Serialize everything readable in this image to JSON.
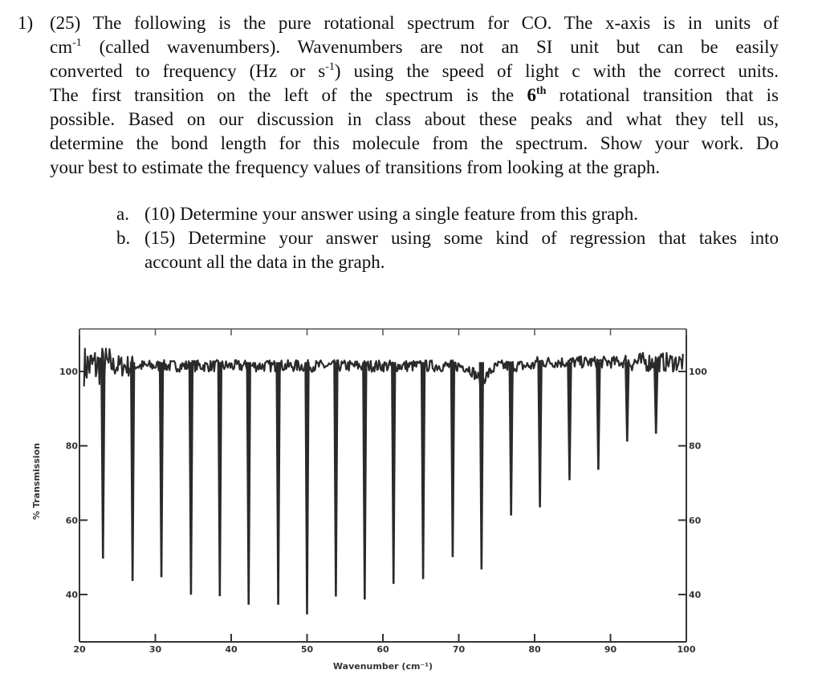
{
  "question": {
    "number": "1)",
    "lines": [
      [
        "(25) The following is the pure rotational spectrum for CO.  The x-axis is in units of"
      ],
      [
        "cm",
        "-1",
        " (called wavenumbers).  Wavenumbers are not an SI unit but can be easily"
      ],
      [
        "converted to frequency (Hz or s",
        "-1",
        ") using the speed of light c with the correct units."
      ],
      [
        "The first transition on the left of the spectrum is the ",
        "6",
        "th",
        " rotational transition that is"
      ],
      [
        "possible.  Based on our discussion in class about these peaks and what they tell us,"
      ],
      [
        "determine the bond length for this molecule from the spectrum.  Show your work. Do"
      ],
      [
        "your best to estimate the frequency values of transitions from looking at the graph."
      ]
    ],
    "parts": [
      {
        "label": "a.",
        "lines": [
          "(10) Determine your answer using a single feature from this graph."
        ]
      },
      {
        "label": "b.",
        "lines": [
          "(15) Determine your answer using some kind of regression that takes into",
          "account all the data in the graph."
        ]
      }
    ]
  },
  "chart_data": {
    "type": "line",
    "title": "",
    "xlabel": "Wavenumber (cm⁻¹)",
    "ylabel": "% Transmission",
    "xlim": [
      20,
      100
    ],
    "ylim": [
      27,
      111
    ],
    "x_ticks": [
      "20",
      "30",
      "40",
      "50",
      "60",
      "70",
      "80",
      "90",
      "100"
    ],
    "y_ticks": [
      "100",
      "80",
      "60",
      "40"
    ],
    "y_ticks_right": [
      "100",
      "80",
      "60",
      "40"
    ],
    "baseline_transmission": 101.5,
    "line_color": "#2a2a2a",
    "peaks": [
      {
        "x": 23.1,
        "y": 49.8
      },
      {
        "x": 27.0,
        "y": 43.8
      },
      {
        "x": 30.8,
        "y": 44.8
      },
      {
        "x": 34.7,
        "y": 40.1
      },
      {
        "x": 38.5,
        "y": 39.7
      },
      {
        "x": 42.3,
        "y": 37.4
      },
      {
        "x": 46.2,
        "y": 37.4
      },
      {
        "x": 50.0,
        "y": 34.8
      },
      {
        "x": 53.8,
        "y": 39.6
      },
      {
        "x": 57.6,
        "y": 38.8
      },
      {
        "x": 61.4,
        "y": 43.0
      },
      {
        "x": 65.3,
        "y": 44.3
      },
      {
        "x": 69.2,
        "y": 50.2
      },
      {
        "x": 73.0,
        "y": 46.9
      },
      {
        "x": 76.9,
        "y": 61.4
      },
      {
        "x": 80.7,
        "y": 63.6
      },
      {
        "x": 84.6,
        "y": 70.9
      },
      {
        "x": 88.4,
        "y": 73.7
      },
      {
        "x": 92.2,
        "y": 81.3
      },
      {
        "x": 96.0,
        "y": 83.4
      }
    ]
  }
}
